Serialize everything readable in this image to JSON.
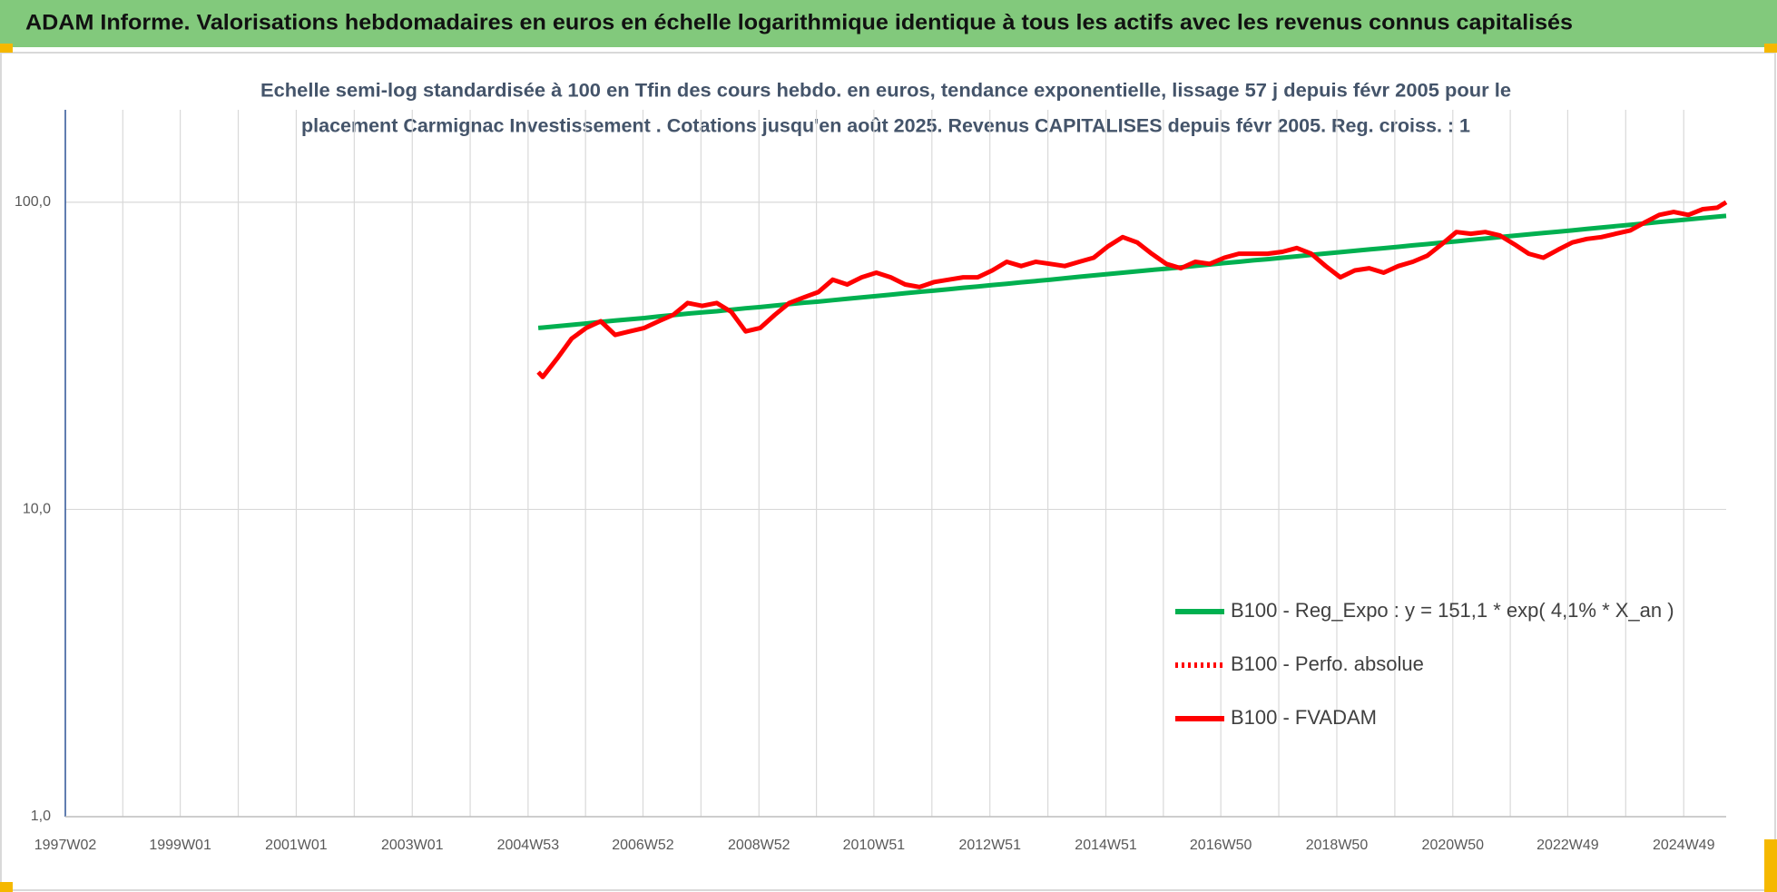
{
  "page_title": "ADAM Informe. Valorisations hebdomadaires en euros en échelle logarithmique identique à tous les actifs avec les revenus connus capitalisés",
  "chart_data": {
    "type": "line",
    "title": [
      "Echelle semi-log standardisée à 100 en Tfin des cours hebdo. en euros, tendance exponentielle, lissage 57 j depuis févr 2005 pour le",
      "placement Carmignac Investissement . Cotations jusqu'en août 2025. Revenus CAPITALISES depuis févr 2005. Reg. croiss. : 1"
    ],
    "log_scale": true,
    "grid": true,
    "legend_position": "lower-right",
    "xlim": [
      "1997W02",
      "2025W35"
    ],
    "xticks": [
      "1997W02",
      "1999W01",
      "2001W01",
      "2003W01",
      "2004W53",
      "2006W52",
      "2008W52",
      "2010W51",
      "2012W51",
      "2014W51",
      "2016W50",
      "2018W50",
      "2020W50",
      "2022W49",
      "2024W49"
    ],
    "ylim": [
      1,
      200
    ],
    "yticks": [
      {
        "value": 1,
        "label": "1,0"
      },
      {
        "value": 10,
        "label": "10,0"
      },
      {
        "value": 100,
        "label": "100,0"
      }
    ],
    "x": [
      "2005W10",
      "2005W14",
      "2005W27",
      "2005W40",
      "2006W01",
      "2006W14",
      "2006W27",
      "2006W40",
      "2007W01",
      "2007W14",
      "2007W27",
      "2007W40",
      "2008W01",
      "2008W14",
      "2008W27",
      "2008W40",
      "2009W01",
      "2009W14",
      "2009W27",
      "2009W40",
      "2010W01",
      "2010W14",
      "2010W27",
      "2010W40",
      "2011W01",
      "2011W14",
      "2011W27",
      "2011W40",
      "2012W01",
      "2012W14",
      "2012W27",
      "2012W40",
      "2013W01",
      "2013W14",
      "2013W27",
      "2013W40",
      "2014W01",
      "2014W14",
      "2014W27",
      "2014W40",
      "2015W01",
      "2015W14",
      "2015W27",
      "2015W40",
      "2016W01",
      "2016W14",
      "2016W27",
      "2016W40",
      "2017W01",
      "2017W14",
      "2017W27",
      "2017W40",
      "2018W01",
      "2018W14",
      "2018W27",
      "2018W40",
      "2019W01",
      "2019W14",
      "2019W27",
      "2019W40",
      "2020W01",
      "2020W14",
      "2020W27",
      "2020W40",
      "2021W01",
      "2021W14",
      "2021W27",
      "2021W40",
      "2022W01",
      "2022W14",
      "2022W27",
      "2022W40",
      "2023W01",
      "2023W14",
      "2023W27",
      "2023W40",
      "2024W01",
      "2024W14",
      "2024W27",
      "2024W40",
      "2025W01",
      "2025W14",
      "2025W27",
      "2025W35"
    ],
    "series": [
      {
        "name": "B100 - Reg_Expo : y = 151,1 * exp( 4,1% *  X_an )",
        "color": "#00b050",
        "style": "solid",
        "values": [
          39.0,
          39.1,
          39.5,
          39.9,
          40.3,
          40.8,
          41.2,
          41.6,
          42.0,
          42.5,
          42.9,
          43.4,
          43.8,
          44.2,
          44.7,
          45.2,
          45.6,
          46.1,
          46.6,
          47.1,
          47.5,
          48.0,
          48.5,
          49.0,
          49.5,
          50.0,
          50.6,
          51.1,
          51.6,
          52.1,
          52.7,
          53.2,
          53.8,
          54.3,
          54.9,
          55.4,
          56.0,
          56.6,
          57.2,
          57.8,
          58.4,
          59.0,
          59.6,
          60.2,
          60.8,
          61.4,
          62.1,
          62.7,
          63.4,
          64.0,
          64.7,
          65.3,
          66.0,
          66.7,
          67.4,
          68.1,
          68.8,
          69.5,
          70.2,
          70.9,
          71.6,
          72.4,
          73.1,
          73.9,
          74.6,
          75.4,
          76.2,
          77.0,
          77.8,
          78.6,
          79.4,
          80.2,
          81.0,
          81.9,
          82.7,
          83.6,
          84.4,
          85.3,
          86.2,
          87.1,
          88.0,
          88.9,
          89.8,
          90.3
        ]
      },
      {
        "name": "B100 - Perfo. absolue",
        "color": "#ff0000",
        "style": "dotted",
        "values": [
          null,
          null,
          null,
          null,
          null,
          null,
          null,
          null,
          null,
          null,
          null,
          null,
          null,
          null,
          null,
          null,
          null,
          null,
          null,
          null,
          null,
          null,
          null,
          null,
          null,
          null,
          null,
          null,
          null,
          null,
          null,
          null,
          null,
          null,
          null,
          null,
          null,
          null,
          null,
          null,
          null,
          null,
          null,
          null,
          null,
          null,
          null,
          null,
          null,
          null,
          null,
          null,
          null,
          null,
          null,
          null,
          null,
          null,
          null,
          null,
          null,
          null,
          null,
          null,
          null,
          null,
          null,
          null,
          null,
          null,
          null,
          null,
          null,
          null,
          null,
          null,
          null,
          null,
          null,
          null,
          null,
          null,
          null,
          null
        ]
      },
      {
        "name": "B100 - FVADAM",
        "color": "#ff0000",
        "style": "solid",
        "values": [
          28,
          27,
          31,
          36,
          39,
          41,
          37,
          38,
          39,
          41,
          43,
          47,
          46,
          47,
          44,
          38,
          39,
          43,
          47,
          49,
          51,
          56,
          54,
          57,
          59,
          57,
          54,
          53,
          55,
          56,
          57,
          57,
          60,
          64,
          62,
          64,
          63,
          62,
          64,
          66,
          72,
          77,
          74,
          68,
          63,
          61,
          64,
          63,
          66,
          68,
          68,
          68,
          69,
          71,
          68,
          62,
          57,
          60,
          61,
          59,
          62,
          64,
          67,
          73,
          80,
          79,
          80,
          78,
          73,
          68,
          66,
          70,
          74,
          76,
          77,
          79,
          81,
          86,
          91,
          93,
          91,
          95,
          96,
          100
        ]
      }
    ]
  }
}
